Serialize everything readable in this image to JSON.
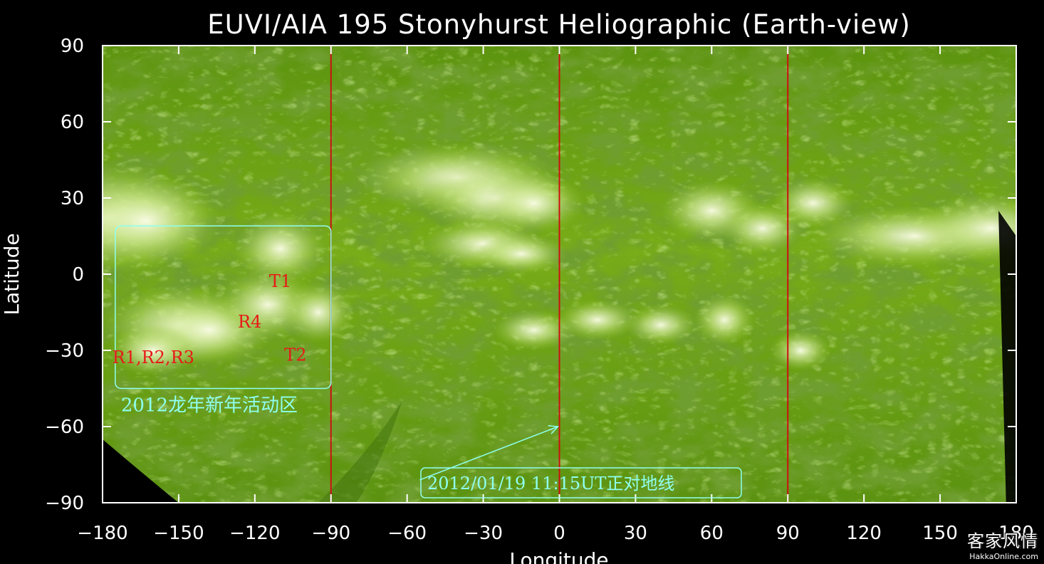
{
  "chart_data": {
    "type": "heatmap",
    "title": "EUVI/AIA 195 Stonyhurst Heliographic (Earth-view)",
    "xlabel": "Longitude",
    "ylabel": "Latitude",
    "xlim": [
      -180,
      180
    ],
    "ylim": [
      -90,
      90
    ],
    "xticks": [
      -180,
      -150,
      -120,
      -90,
      -60,
      -30,
      0,
      30,
      60,
      90,
      120,
      150,
      180
    ],
    "yticks": [
      -90,
      -60,
      -30,
      0,
      30,
      60,
      90
    ],
    "reference_lines_longitude": [
      -90,
      0,
      90
    ],
    "colors": {
      "map_base": "#6a9e10",
      "map_dark": "#2a5a06",
      "map_bright": "#f2f8d8",
      "reference_line": "#cc1010",
      "annotation": "#8ffff0",
      "region_label": "#e81818"
    },
    "active_region_box": {
      "lon": [
        -175,
        -90
      ],
      "lat": [
        -45,
        19
      ],
      "label": "2012龙年新年活动区"
    },
    "region_labels": [
      {
        "text": "T1",
        "lon": -110,
        "lat": -5
      },
      {
        "text": "R4",
        "lon": -122,
        "lat": -21
      },
      {
        "text": "R1,R2,R3",
        "lon": -160,
        "lat": -35
      },
      {
        "text": "T2",
        "lon": -104,
        "lat": -34
      }
    ],
    "central_meridian_annotation": {
      "text": "2012/01/19 11:15UT正对地线",
      "arrow_to_lon": 0,
      "arrow_to_lat": -60
    }
  },
  "watermark": {
    "site_name": "客家风情",
    "url": "HakkaOnline.com"
  }
}
